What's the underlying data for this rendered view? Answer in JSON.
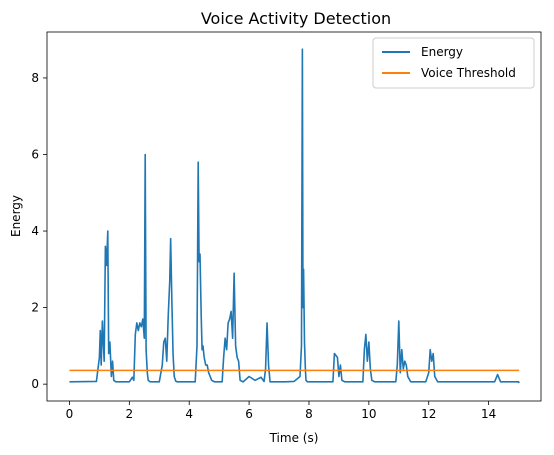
{
  "chart_data": {
    "type": "line",
    "title": "Voice Activity Detection",
    "xlabel": "Time (s)",
    "ylabel": "Energy",
    "xlim": [
      -0.75,
      15.75
    ],
    "ylim": [
      -0.44,
      9.2
    ],
    "x_ticks": [
      0,
      2,
      4,
      6,
      8,
      10,
      12,
      14
    ],
    "y_ticks": [
      0,
      2,
      4,
      6,
      8
    ],
    "grid": false,
    "legend_position": "top-right",
    "series": [
      {
        "name": "Energy",
        "color": "#1f77b4",
        "x": [
          0,
          0.9,
          1.0,
          1.03,
          1.06,
          1.1,
          1.13,
          1.16,
          1.2,
          1.24,
          1.28,
          1.31,
          1.35,
          1.4,
          1.44,
          1.48,
          1.55,
          1.7,
          2.0,
          2.1,
          2.15,
          2.2,
          2.25,
          2.3,
          2.35,
          2.4,
          2.45,
          2.5,
          2.53,
          2.56,
          2.6,
          2.63,
          2.7,
          2.8,
          3.0,
          3.1,
          3.15,
          3.2,
          3.25,
          3.3,
          3.35,
          3.38,
          3.42,
          3.46,
          3.5,
          3.55,
          3.6,
          3.75,
          4.0,
          4.2,
          4.26,
          4.3,
          4.33,
          4.36,
          4.4,
          4.43,
          4.46,
          4.5,
          4.55,
          4.6,
          4.65,
          4.7,
          4.75,
          4.85,
          5.0,
          5.1,
          5.15,
          5.2,
          5.25,
          5.3,
          5.35,
          5.4,
          5.45,
          5.5,
          5.55,
          5.6,
          5.65,
          5.7,
          5.8,
          6.0,
          6.2,
          6.4,
          6.5,
          6.55,
          6.6,
          6.65,
          6.7,
          6.8,
          7.2,
          7.5,
          7.7,
          7.75,
          7.78,
          7.8,
          7.82,
          7.85,
          7.88,
          7.9,
          7.95,
          8.0,
          8.1,
          8.5,
          8.8,
          8.85,
          8.9,
          8.95,
          9.0,
          9.05,
          9.1,
          9.2,
          9.5,
          9.8,
          9.85,
          9.9,
          9.95,
          10.0,
          10.05,
          10.1,
          10.2,
          10.5,
          10.9,
          10.95,
          11.0,
          11.05,
          11.1,
          11.15,
          11.2,
          11.25,
          11.3,
          11.4,
          11.6,
          11.9,
          12.0,
          12.05,
          12.1,
          12.15,
          12.2,
          12.3,
          12.5,
          13.0,
          13.5,
          14.2,
          14.3,
          14.4,
          14.8,
          15.0,
          15.02
        ],
        "y": [
          0.06,
          0.07,
          0.7,
          1.4,
          0.5,
          1.65,
          1.1,
          0.6,
          3.6,
          3.1,
          4.0,
          0.8,
          1.1,
          0.2,
          0.6,
          0.1,
          0.06,
          0.06,
          0.06,
          0.18,
          0.1,
          1.3,
          1.6,
          1.4,
          1.6,
          1.5,
          1.7,
          1.2,
          6.0,
          0.9,
          0.3,
          0.1,
          0.06,
          0.06,
          0.06,
          0.5,
          1.1,
          1.2,
          0.6,
          1.8,
          2.7,
          3.8,
          2.2,
          0.8,
          0.2,
          0.08,
          0.06,
          0.06,
          0.06,
          0.06,
          1.0,
          5.8,
          3.2,
          3.4,
          1.8,
          0.9,
          1.0,
          0.7,
          0.5,
          0.5,
          0.3,
          0.2,
          0.1,
          0.06,
          0.06,
          0.06,
          0.7,
          1.2,
          0.9,
          1.6,
          1.7,
          1.9,
          1.2,
          2.9,
          1.0,
          0.7,
          0.6,
          0.1,
          0.06,
          0.2,
          0.1,
          0.18,
          0.07,
          0.4,
          1.6,
          0.5,
          0.06,
          0.06,
          0.06,
          0.07,
          0.2,
          1.0,
          8.75,
          2.0,
          3.0,
          1.1,
          0.4,
          0.1,
          0.06,
          0.06,
          0.06,
          0.06,
          0.06,
          0.8,
          0.75,
          0.7,
          0.2,
          0.5,
          0.1,
          0.06,
          0.06,
          0.06,
          0.9,
          1.3,
          0.6,
          1.1,
          0.4,
          0.1,
          0.06,
          0.06,
          0.06,
          0.5,
          1.65,
          0.3,
          0.9,
          0.4,
          0.6,
          0.5,
          0.2,
          0.06,
          0.06,
          0.06,
          0.3,
          0.9,
          0.6,
          0.8,
          0.2,
          0.06,
          0.06,
          0.06,
          0.06,
          0.06,
          0.25,
          0.06,
          0.06,
          0.06,
          0.03
        ]
      },
      {
        "name": "Voice Threshold",
        "color": "#ff7f0e",
        "x": [
          0,
          15.02
        ],
        "y": [
          0.36,
          0.36
        ]
      }
    ]
  }
}
